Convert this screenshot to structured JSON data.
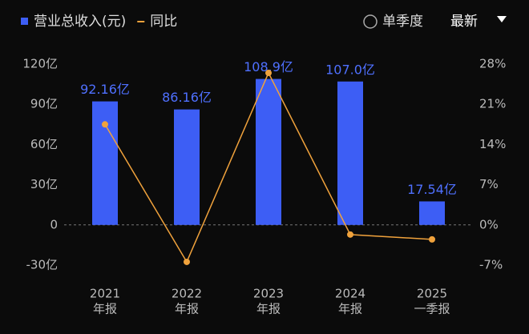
{
  "chart_data": {
    "type": "bar",
    "categories": [
      [
        "2021",
        "年报"
      ],
      [
        "2022",
        "年报"
      ],
      [
        "2023",
        "年报"
      ],
      [
        "2024",
        "年报"
      ],
      [
        "2025",
        "一季报"
      ]
    ],
    "series": [
      {
        "name": "营业总收入(元)",
        "color": "#3d5ef5",
        "values": [
          92.16,
          86.16,
          108.9,
          107.0,
          17.54
        ],
        "value_labels": [
          "92.16亿",
          "86.16亿",
          "108.9亿",
          "107.0亿",
          "17.54亿"
        ]
      },
      {
        "name": "同比",
        "type": "line",
        "axis": "y2",
        "color": "#f0a23c",
        "values": [
          17.5,
          -6.44,
          26.46,
          -1.68,
          -2.52
        ]
      }
    ],
    "ylim": [
      -30,
      120
    ],
    "yticks": [
      {
        "value": -30,
        "label": "-30亿"
      },
      0,
      {
        "value": 30,
        "label": "30亿"
      },
      {
        "value": 60,
        "label": "60亿"
      },
      {
        "value": 90,
        "label": "90亿"
      },
      {
        "value": 120,
        "label": "120亿"
      }
    ],
    "y2lim": [
      -7,
      28
    ],
    "y2ticks": [
      {
        "value": -7,
        "label": "-7%"
      },
      {
        "value": 0,
        "label": "0%"
      },
      {
        "value": 7,
        "label": "7%"
      },
      {
        "value": 14,
        "label": "14%"
      },
      {
        "value": 21,
        "label": "21%"
      },
      {
        "value": 28,
        "label": "28%"
      }
    ],
    "grid": false
  },
  "controls": {
    "option": "单季度",
    "period": "最新"
  }
}
